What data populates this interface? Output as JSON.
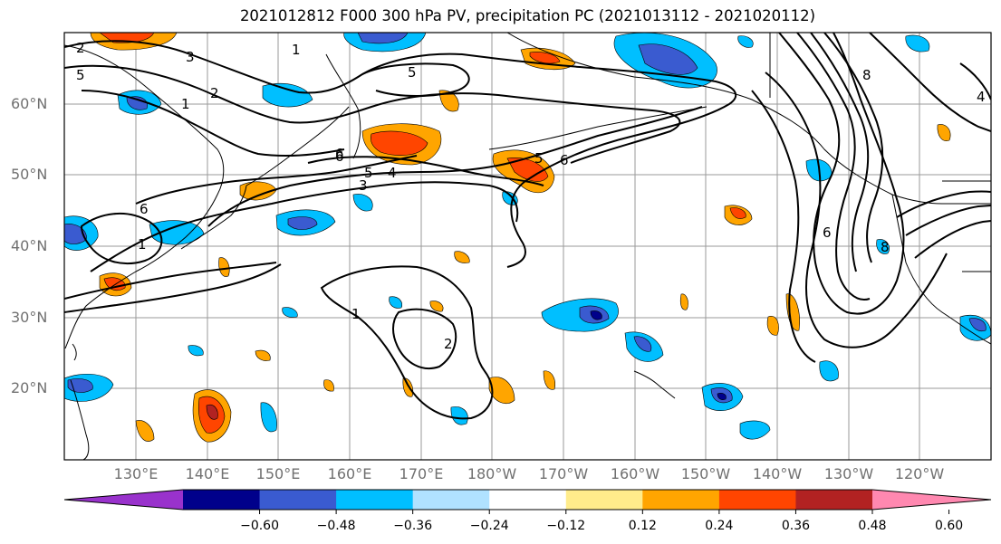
{
  "title": "2021012812 F000 300 hPa PV, precipitation PC (2021013112 - 2021020112)",
  "map": {
    "projection": "PlateCarree",
    "lon_range": [
      120,
      250
    ],
    "lat_range": [
      10,
      70
    ],
    "lat_labels": [
      "60°N",
      "50°N",
      "40°N",
      "30°N",
      "20°N"
    ],
    "lon_labels": [
      "130°E",
      "140°E",
      "150°E",
      "160°E",
      "170°E",
      "180°W",
      "170°W",
      "160°W",
      "150°W",
      "140°W",
      "130°W",
      "120°W"
    ],
    "gridlines": true,
    "contour_labels": [
      "2",
      "3",
      "1",
      "2",
      "5",
      "5",
      "6",
      "5",
      "4",
      "3",
      "6",
      "1",
      "6",
      "2",
      "1",
      "1",
      "5",
      "6",
      "8",
      "8",
      "6",
      "4"
    ]
  },
  "colorbar": {
    "ticks": [
      "−0.60",
      "−0.48",
      "−0.36",
      "−0.24",
      "−0.12",
      "0.12",
      "0.24",
      "0.36",
      "0.48",
      "0.60"
    ],
    "colors": [
      "#9932cc",
      "#00008b",
      "#3a5bd0",
      "#00bfff",
      "#b0e2ff",
      "#ffffff",
      "#ffec8b",
      "#ffa500",
      "#ff4500",
      "#b22222",
      "#ff88b0"
    ]
  }
}
